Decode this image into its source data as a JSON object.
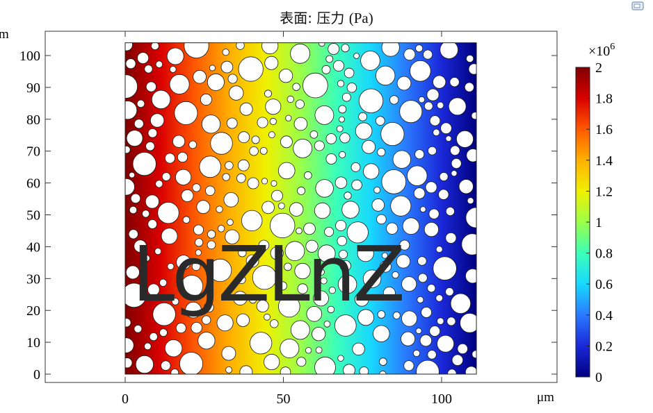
{
  "title_prefix": "表面: 压力",
  "title_unit": "(Pa)",
  "watermark": "LgZLnZ",
  "chart_data": {
    "type": "heatmap",
    "title": "表面: 压力 (Pa)",
    "xlabel": "",
    "ylabel": "",
    "x_unit": "μm",
    "y_unit_partial": "m",
    "x_ticks": [
      "0",
      "50",
      "100"
    ],
    "x_tick_values": [
      0,
      50,
      100
    ],
    "y_ticks": [
      "0",
      "10",
      "20",
      "30",
      "40",
      "50",
      "60",
      "70",
      "80",
      "90",
      "100"
    ],
    "y_tick_values": [
      0,
      10,
      20,
      30,
      40,
      50,
      60,
      70,
      80,
      90,
      100
    ],
    "xlim": [
      -25,
      135
    ],
    "ylim": [
      -3,
      107
    ],
    "domain_x": [
      0,
      111
    ],
    "domain_y": [
      0,
      104
    ],
    "field": "pressure decreases linearly from left to right",
    "pressure_left": 2000000,
    "pressure_right": 0,
    "colormap": "rainbow",
    "colorbar": {
      "multiplier": "×10",
      "exponent": "6",
      "min": 0,
      "max": 2,
      "ticks": [
        "2",
        "1.8",
        "1.6",
        "1.4",
        "1.2",
        "1",
        "0.8",
        "0.6",
        "0.4",
        "0.2",
        "0"
      ],
      "tick_values": [
        2,
        1.8,
        1.6,
        1.4,
        1.2,
        1,
        0.8,
        0.6,
        0.4,
        0.2,
        0
      ],
      "colors": [
        "#800000",
        "#d90000",
        "#ff5a00",
        "#ffb000",
        "#f0f000",
        "#9aff4a",
        "#3cffb8",
        "#18d8ff",
        "#2a7aff",
        "#1a28d8",
        "#000080"
      ]
    },
    "obstacle_color": "#ffffff"
  }
}
